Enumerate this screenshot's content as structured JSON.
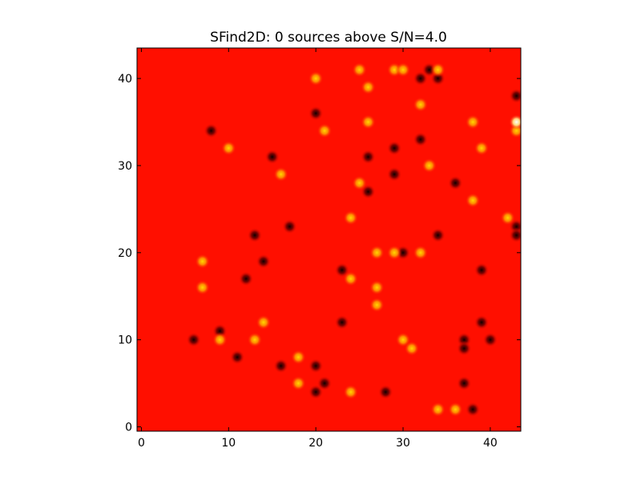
{
  "chart_data": {
    "type": "heatmap",
    "title": "SFind2D: 0 sources above S/N=4.0",
    "xlabel": "",
    "ylabel": "",
    "xlim": [
      -0.5,
      43.5
    ],
    "ylim": [
      -0.5,
      43.5
    ],
    "x_ticks": [
      0,
      10,
      20,
      30,
      40
    ],
    "y_ticks": [
      0,
      10,
      20,
      30,
      40
    ],
    "x_tick_labels": [
      "0",
      "10",
      "20",
      "30",
      "40"
    ],
    "y_tick_labels": [
      "0",
      "10",
      "20",
      "30",
      "40"
    ],
    "grid": false,
    "colormap": "hot",
    "background_color": "#ff0f00",
    "bright_color": "#ffd800",
    "dark_color": "#100000",
    "white_color": "#ffffff",
    "bright_sources": [
      [
        7,
        19
      ],
      [
        7,
        16
      ],
      [
        9,
        10
      ],
      [
        10,
        32
      ],
      [
        13,
        10
      ],
      [
        14,
        12
      ],
      [
        16,
        29
      ],
      [
        18,
        8
      ],
      [
        18,
        5
      ],
      [
        20,
        40
      ],
      [
        21,
        34
      ],
      [
        24,
        24
      ],
      [
        24,
        17
      ],
      [
        24,
        4
      ],
      [
        25,
        41
      ],
      [
        25,
        28
      ],
      [
        26,
        39
      ],
      [
        26,
        35
      ],
      [
        27,
        20
      ],
      [
        27,
        16
      ],
      [
        27,
        14
      ],
      [
        29,
        41
      ],
      [
        29,
        20
      ],
      [
        30,
        41
      ],
      [
        30,
        10
      ],
      [
        31,
        9
      ],
      [
        32,
        37
      ],
      [
        32,
        20
      ],
      [
        33,
        30
      ],
      [
        34,
        41
      ],
      [
        34,
        2
      ],
      [
        36,
        2
      ],
      [
        38,
        35
      ],
      [
        38,
        26
      ],
      [
        39,
        32
      ],
      [
        42,
        24
      ],
      [
        43,
        34
      ]
    ],
    "dark_sources": [
      [
        6,
        10
      ],
      [
        8,
        34
      ],
      [
        9,
        11
      ],
      [
        11,
        8
      ],
      [
        12,
        17
      ],
      [
        13,
        22
      ],
      [
        14,
        19
      ],
      [
        15,
        31
      ],
      [
        16,
        7
      ],
      [
        17,
        23
      ],
      [
        20,
        36
      ],
      [
        20,
        7
      ],
      [
        20,
        4
      ],
      [
        21,
        5
      ],
      [
        23,
        18
      ],
      [
        23,
        12
      ],
      [
        26,
        31
      ],
      [
        26,
        27
      ],
      [
        28,
        4
      ],
      [
        29,
        32
      ],
      [
        29,
        29
      ],
      [
        30,
        20
      ],
      [
        32,
        40
      ],
      [
        32,
        33
      ],
      [
        33,
        41
      ],
      [
        34,
        40
      ],
      [
        34,
        22
      ],
      [
        36,
        28
      ],
      [
        37,
        10
      ],
      [
        37,
        9
      ],
      [
        37,
        5
      ],
      [
        38,
        2
      ],
      [
        39,
        18
      ],
      [
        39,
        12
      ],
      [
        40,
        10
      ],
      [
        43,
        38
      ],
      [
        43,
        23
      ],
      [
        43,
        22
      ]
    ],
    "white_sources": [
      [
        43,
        35
      ]
    ]
  }
}
